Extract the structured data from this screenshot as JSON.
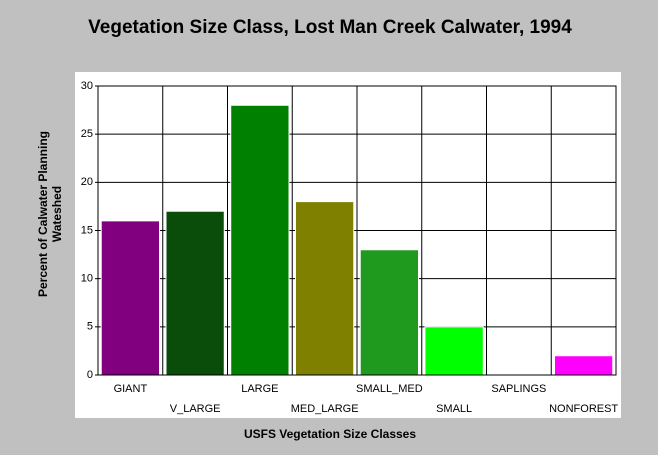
{
  "chart_data": {
    "type": "bar",
    "title": "Vegetation Size Class, Lost Man Creek Calwater, 1994",
    "x_label": "USFS Vegetation Size Classes",
    "y_label": "Percent of Calwater Planning Wateshed",
    "categories": [
      "GIANT",
      "V_LARGE",
      "LARGE",
      "MED_LARGE",
      "SMALL_MED",
      "SMALL",
      "SAPLINGS",
      "NONFOREST"
    ],
    "values": [
      16,
      17,
      28,
      18,
      13,
      5,
      0,
      2
    ],
    "colors": [
      "#800080",
      "#0a4d0a",
      "#008000",
      "#808000",
      "#1f9a1f",
      "#00ff00",
      "#c0c0c0",
      "#ff00ff"
    ],
    "ylim": [
      0,
      30
    ],
    "yticks": [
      0,
      5,
      10,
      15,
      20,
      25,
      30
    ],
    "grid": true
  }
}
